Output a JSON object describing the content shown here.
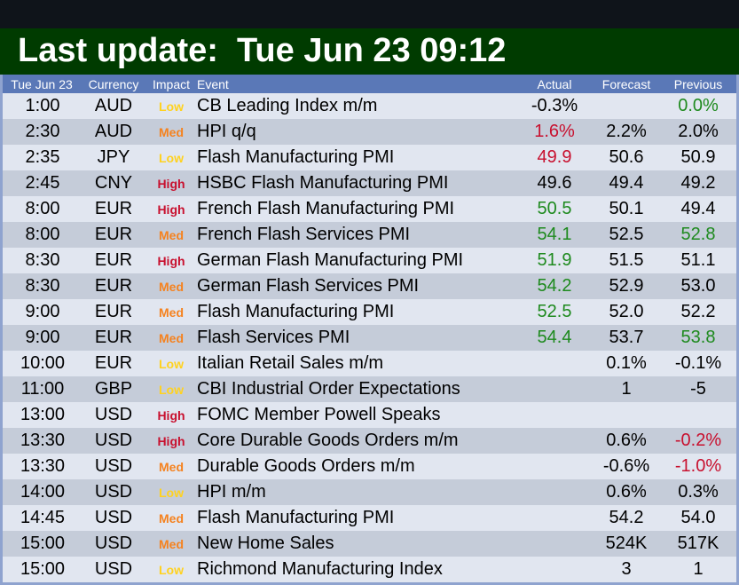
{
  "banner": {
    "title": "Last update:  Tue Jun 23 09:12"
  },
  "colors": {
    "banner_bg": "#003b00",
    "header_bg": "#5a78b7",
    "row_odd": "#e1e6f0",
    "row_even": "#c5ccd9",
    "impact_low": "#ffd21f",
    "impact_med": "#f5821f",
    "impact_high": "#c8102e",
    "value_up": "#1e8a1e",
    "value_down": "#c8102e"
  },
  "table": {
    "headers": {
      "date": "Tue Jun 23",
      "currency": "Currency",
      "impact": "Impact",
      "event": "Event",
      "actual": "Actual",
      "forecast": "Forecast",
      "previous": "Previous"
    },
    "rows": [
      {
        "time": "1:00",
        "currency": "AUD",
        "impact": "Low",
        "event": "CB Leading Index m/m",
        "actual": "-0.3%",
        "actual_color": "neutral",
        "forecast": "",
        "previous": "0.0%",
        "previous_color": "up"
      },
      {
        "time": "2:30",
        "currency": "AUD",
        "impact": "Med",
        "event": "HPI q/q",
        "actual": "1.6%",
        "actual_color": "down",
        "forecast": "2.2%",
        "previous": "2.0%",
        "previous_color": "neutral"
      },
      {
        "time": "2:35",
        "currency": "JPY",
        "impact": "Low",
        "event": "Flash Manufacturing PMI",
        "actual": "49.9",
        "actual_color": "down",
        "forecast": "50.6",
        "previous": "50.9",
        "previous_color": "neutral"
      },
      {
        "time": "2:45",
        "currency": "CNY",
        "impact": "High",
        "event": "HSBC Flash Manufacturing PMI",
        "actual": "49.6",
        "actual_color": "neutral",
        "forecast": "49.4",
        "previous": "49.2",
        "previous_color": "neutral"
      },
      {
        "time": "8:00",
        "currency": "EUR",
        "impact": "High",
        "event": "French Flash Manufacturing PMI",
        "actual": "50.5",
        "actual_color": "up",
        "forecast": "50.1",
        "previous": "49.4",
        "previous_color": "neutral"
      },
      {
        "time": "8:00",
        "currency": "EUR",
        "impact": "Med",
        "event": "French Flash Services PMI",
        "actual": "54.1",
        "actual_color": "up",
        "forecast": "52.5",
        "previous": "52.8",
        "previous_color": "up"
      },
      {
        "time": "8:30",
        "currency": "EUR",
        "impact": "High",
        "event": "German Flash Manufacturing PMI",
        "actual": "51.9",
        "actual_color": "up",
        "forecast": "51.5",
        "previous": "51.1",
        "previous_color": "neutral"
      },
      {
        "time": "8:30",
        "currency": "EUR",
        "impact": "Med",
        "event": "German Flash Services PMI",
        "actual": "54.2",
        "actual_color": "up",
        "forecast": "52.9",
        "previous": "53.0",
        "previous_color": "neutral"
      },
      {
        "time": "9:00",
        "currency": "EUR",
        "impact": "Med",
        "event": "Flash Manufacturing PMI",
        "actual": "52.5",
        "actual_color": "up",
        "forecast": "52.0",
        "previous": "52.2",
        "previous_color": "neutral"
      },
      {
        "time": "9:00",
        "currency": "EUR",
        "impact": "Med",
        "event": "Flash Services PMI",
        "actual": "54.4",
        "actual_color": "up",
        "forecast": "53.7",
        "previous": "53.8",
        "previous_color": "up"
      },
      {
        "time": "10:00",
        "currency": "EUR",
        "impact": "Low",
        "event": "Italian Retail Sales m/m",
        "actual": "",
        "actual_color": "neutral",
        "forecast": "0.1%",
        "previous": "-0.1%",
        "previous_color": "neutral"
      },
      {
        "time": "11:00",
        "currency": "GBP",
        "impact": "Low",
        "event": "CBI Industrial Order Expectations",
        "actual": "",
        "actual_color": "neutral",
        "forecast": "1",
        "previous": "-5",
        "previous_color": "neutral"
      },
      {
        "time": "13:00",
        "currency": "USD",
        "impact": "High",
        "event": "FOMC Member Powell Speaks",
        "actual": "",
        "actual_color": "neutral",
        "forecast": "",
        "previous": "",
        "previous_color": "neutral"
      },
      {
        "time": "13:30",
        "currency": "USD",
        "impact": "High",
        "event": "Core Durable Goods Orders m/m",
        "actual": "",
        "actual_color": "neutral",
        "forecast": "0.6%",
        "previous": "-0.2%",
        "previous_color": "down"
      },
      {
        "time": "13:30",
        "currency": "USD",
        "impact": "Med",
        "event": "Durable Goods Orders m/m",
        "actual": "",
        "actual_color": "neutral",
        "forecast": "-0.6%",
        "previous": "-1.0%",
        "previous_color": "down"
      },
      {
        "time": "14:00",
        "currency": "USD",
        "impact": "Low",
        "event": "HPI m/m",
        "actual": "",
        "actual_color": "neutral",
        "forecast": "0.6%",
        "previous": "0.3%",
        "previous_color": "neutral"
      },
      {
        "time": "14:45",
        "currency": "USD",
        "impact": "Med",
        "event": "Flash Manufacturing PMI",
        "actual": "",
        "actual_color": "neutral",
        "forecast": "54.2",
        "previous": "54.0",
        "previous_color": "neutral"
      },
      {
        "time": "15:00",
        "currency": "USD",
        "impact": "Med",
        "event": "New Home Sales",
        "actual": "",
        "actual_color": "neutral",
        "forecast": "524K",
        "previous": "517K",
        "previous_color": "neutral"
      },
      {
        "time": "15:00",
        "currency": "USD",
        "impact": "Low",
        "event": "Richmond Manufacturing Index",
        "actual": "",
        "actual_color": "neutral",
        "forecast": "3",
        "previous": "1",
        "previous_color": "neutral"
      }
    ]
  }
}
